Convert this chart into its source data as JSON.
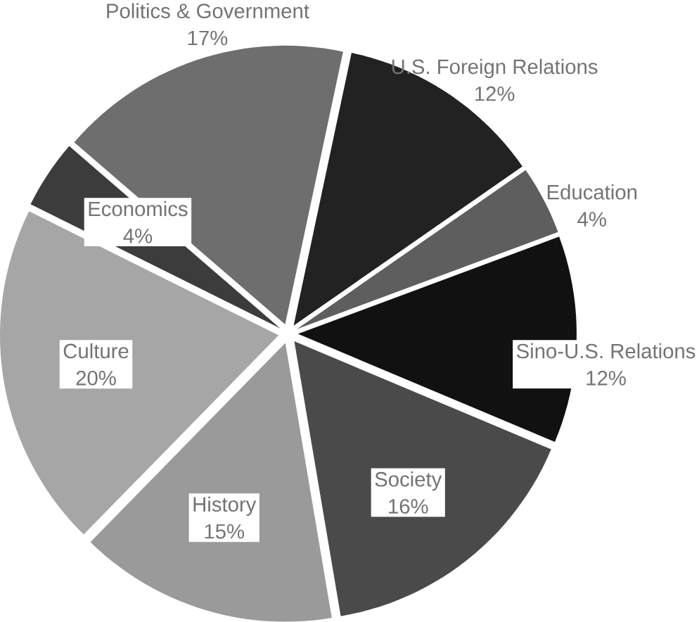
{
  "chart_data": {
    "type": "pie",
    "categories": [
      "Politics & Government",
      "U.S. Foreign Relations",
      "Education",
      "Sino-U.S. Relations",
      "Society",
      "History",
      "Culture",
      "Economics"
    ],
    "values": [
      17,
      12,
      4,
      12,
      16,
      15,
      20,
      4
    ],
    "value_labels": [
      "17%",
      "12%",
      "4%",
      "12%",
      "16%",
      "15%",
      "20%",
      "4%"
    ],
    "colors": [
      "#6e6e6e",
      "#222222",
      "#5e5e5e",
      "#111111",
      "#4a4a4a",
      "#9a9a9a",
      "#a6a6a6",
      "#3c3c3c"
    ]
  }
}
